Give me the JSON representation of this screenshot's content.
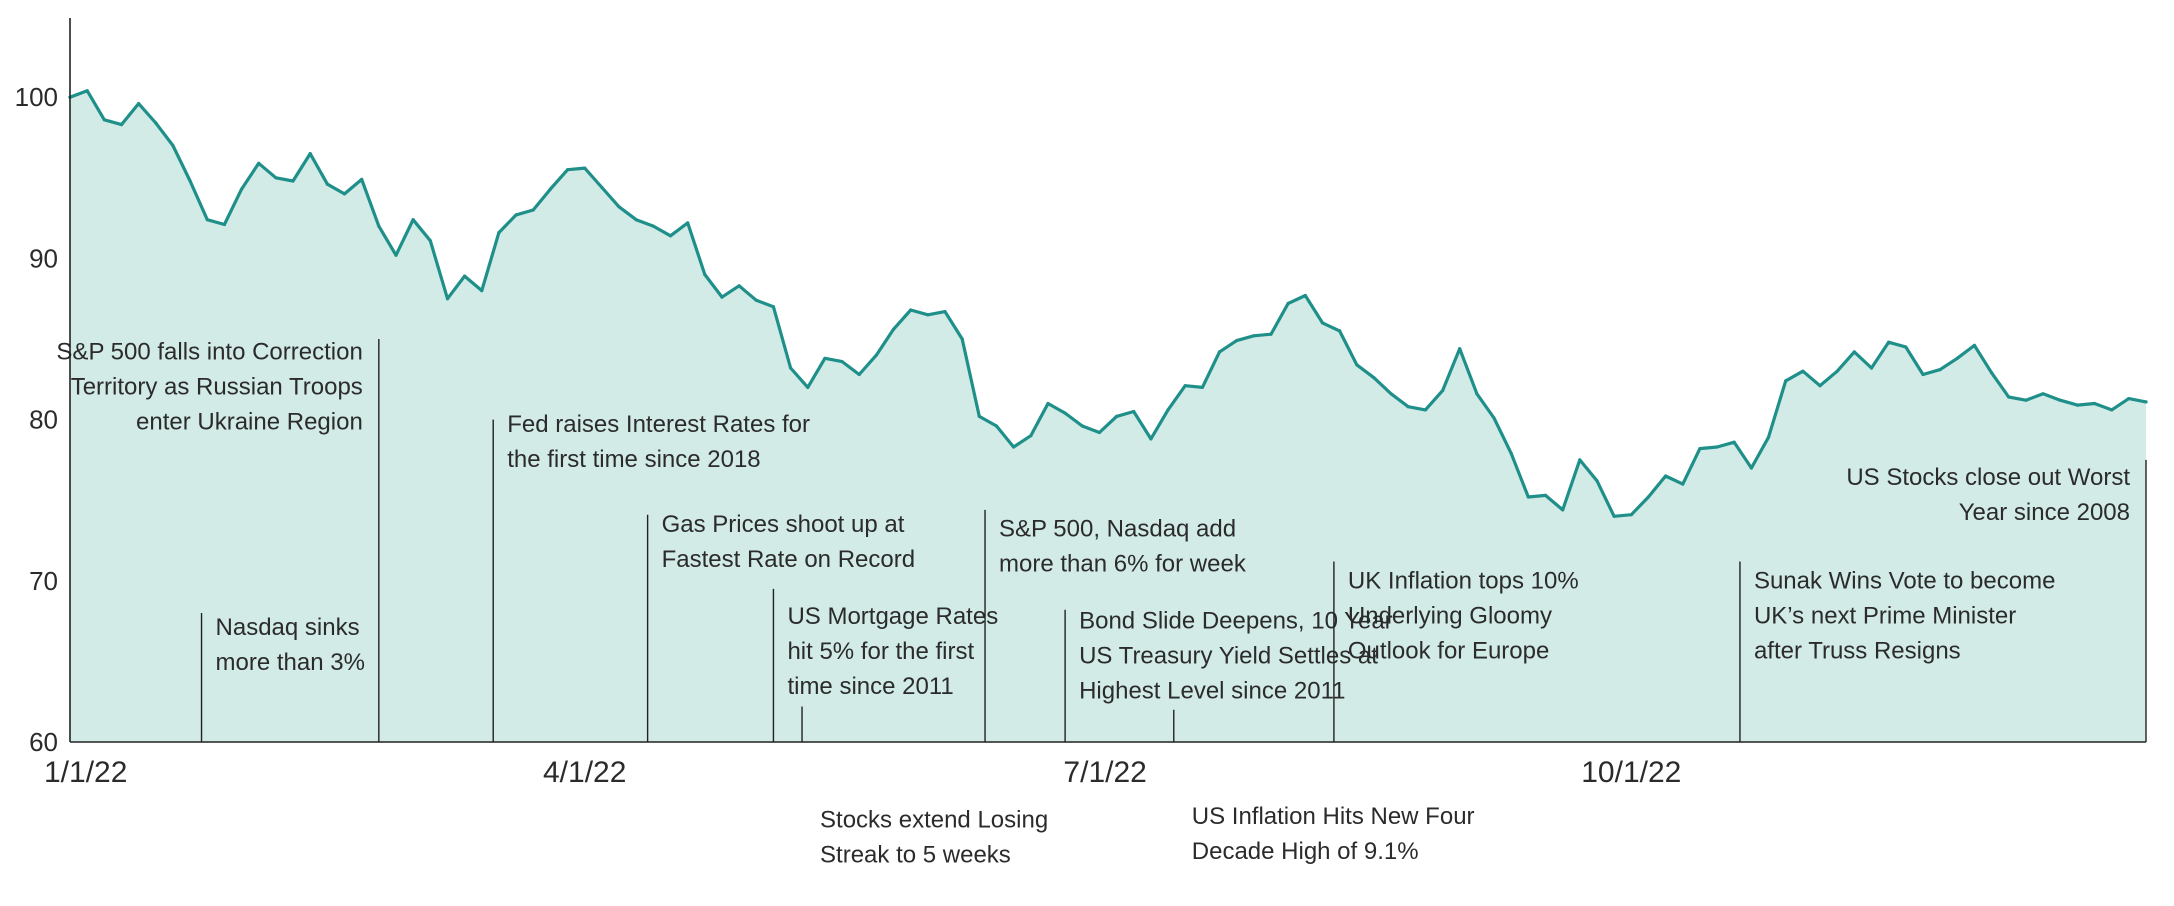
{
  "chart_data": {
    "type": "area",
    "title": "",
    "xlabel": "",
    "ylabel": "",
    "xlim": [
      "2022-01-01",
      "2022-12-30"
    ],
    "ylim": [
      60,
      104
    ],
    "yticks": [
      60,
      70,
      80,
      90,
      100
    ],
    "xticks": [
      "2022-01-01",
      "2022-04-01",
      "2022-07-01",
      "2022-10-01"
    ],
    "xtick_labels": [
      "1/1/22",
      "4/1/22",
      "7/1/22",
      "10/1/22"
    ],
    "grid": false,
    "legend": "none",
    "colors": {
      "line": "#1f8f8a",
      "fill": "#d2ebe7",
      "axis": "#222222",
      "text": "#2b2b2b"
    },
    "series": [
      {
        "x": [
          "2022-01-01",
          "2022-01-04",
          "2022-01-07",
          "2022-01-10",
          "2022-01-13",
          "2022-01-16",
          "2022-01-19",
          "2022-01-22",
          "2022-01-25",
          "2022-01-28",
          "2022-01-31",
          "2022-02-03",
          "2022-02-06",
          "2022-02-09",
          "2022-02-12",
          "2022-02-15",
          "2022-02-18",
          "2022-02-21",
          "2022-02-24",
          "2022-02-27",
          "2022-03-02",
          "2022-03-05",
          "2022-03-08",
          "2022-03-11",
          "2022-03-14",
          "2022-03-17",
          "2022-03-20",
          "2022-03-23",
          "2022-03-26",
          "2022-03-29",
          "2022-04-01",
          "2022-04-04",
          "2022-04-07",
          "2022-04-10",
          "2022-04-13",
          "2022-04-16",
          "2022-04-19",
          "2022-04-22",
          "2022-04-25",
          "2022-04-28",
          "2022-05-01",
          "2022-05-04",
          "2022-05-07",
          "2022-05-10",
          "2022-05-13",
          "2022-05-16",
          "2022-05-19",
          "2022-05-22",
          "2022-05-25",
          "2022-05-28",
          "2022-05-31",
          "2022-06-03",
          "2022-06-06",
          "2022-06-09",
          "2022-06-12",
          "2022-06-15",
          "2022-06-18",
          "2022-06-21",
          "2022-06-24",
          "2022-06-27",
          "2022-06-30",
          "2022-07-03",
          "2022-07-06",
          "2022-07-09",
          "2022-07-12",
          "2022-07-15",
          "2022-07-18",
          "2022-07-21",
          "2022-07-24",
          "2022-07-27",
          "2022-07-30",
          "2022-08-02",
          "2022-08-05",
          "2022-08-08",
          "2022-08-11",
          "2022-08-14",
          "2022-08-17",
          "2022-08-20",
          "2022-08-23",
          "2022-08-26",
          "2022-08-29",
          "2022-09-01",
          "2022-09-04",
          "2022-09-07",
          "2022-09-10",
          "2022-09-13",
          "2022-09-16",
          "2022-09-19",
          "2022-09-22",
          "2022-09-25",
          "2022-09-28",
          "2022-10-01",
          "2022-10-04",
          "2022-10-07",
          "2022-10-10",
          "2022-10-13",
          "2022-10-16",
          "2022-10-19",
          "2022-10-22",
          "2022-10-25",
          "2022-10-28",
          "2022-10-31",
          "2022-11-03",
          "2022-11-06",
          "2022-11-09",
          "2022-11-12",
          "2022-11-15",
          "2022-11-18",
          "2022-11-21",
          "2022-11-24",
          "2022-11-27",
          "2022-11-30",
          "2022-12-03",
          "2022-12-06",
          "2022-12-09",
          "2022-12-12",
          "2022-12-15",
          "2022-12-18",
          "2022-12-21",
          "2022-12-24",
          "2022-12-27",
          "2022-12-30"
        ],
        "y": [
          100.0,
          100.4,
          98.6,
          98.3,
          99.6,
          98.4,
          97.0,
          94.8,
          92.4,
          92.1,
          94.3,
          95.9,
          95.0,
          94.8,
          96.5,
          94.6,
          94.0,
          94.9,
          92.0,
          90.2,
          92.4,
          91.1,
          87.5,
          88.9,
          88.0,
          91.6,
          92.7,
          93.0,
          94.3,
          95.5,
          95.6,
          94.4,
          93.2,
          92.4,
          92.0,
          91.4,
          92.2,
          89.0,
          87.6,
          88.3,
          87.4,
          87.0,
          83.2,
          82.0,
          83.8,
          83.6,
          82.8,
          84.0,
          85.6,
          86.8,
          86.5,
          86.7,
          85.0,
          80.2,
          79.6,
          78.3,
          79.0,
          81.0,
          80.4,
          79.6,
          79.2,
          80.2,
          80.5,
          78.8,
          80.6,
          82.1,
          82.0,
          84.2,
          84.9,
          85.2,
          85.3,
          87.2,
          87.7,
          86.0,
          85.5,
          83.4,
          82.6,
          81.6,
          80.8,
          80.6,
          81.8,
          84.4,
          81.6,
          80.1,
          77.9,
          75.2,
          75.3,
          74.4,
          77.5,
          76.2,
          74.0,
          74.1,
          75.2,
          76.5,
          76.0,
          78.2,
          78.3,
          78.6,
          77.0,
          78.9,
          82.4,
          83.0,
          82.1,
          83.0,
          84.2,
          83.2,
          84.8,
          84.5,
          82.8,
          83.1,
          83.8,
          84.6,
          82.9,
          81.4,
          81.2,
          81.6,
          81.2,
          80.9,
          81.0,
          80.6,
          81.3,
          81.1
        ]
      }
    ],
    "annotations": [
      {
        "x": "2022-01-24",
        "lines": [
          "Nasdaq sinks",
          "more than 3%"
        ],
        "value_top": 68,
        "text_top": 68,
        "align": "left"
      },
      {
        "x": "2022-02-24",
        "lines": [
          "S&P 500 falls into Correction",
          "Territory as Russian Troops",
          "enter Ukraine Region"
        ],
        "value_top": 85,
        "text_top": 85.1,
        "align": "right"
      },
      {
        "x": "2022-03-16",
        "lines": [
          "Fed raises Interest Rates for",
          "the first time since 2018"
        ],
        "value_top": 80,
        "text_top": 80.6,
        "align": "left"
      },
      {
        "x": "2022-04-12",
        "lines": [
          "Gas Prices shoot up at",
          "Fastest Rate on Record"
        ],
        "value_top": 74.1,
        "text_top": 74.4,
        "align": "left"
      },
      {
        "x": "2022-05-04",
        "lines": [
          "US Mortgage Rates",
          "hit 5% for the first",
          "time since 2011"
        ],
        "value_top": 69.5,
        "text_top": 68.7,
        "align": "left"
      },
      {
        "x": "2022-05-09",
        "lines": [
          "Stocks extend Losing",
          "Streak to 5 weeks"
        ],
        "value_top": 60,
        "text_top": 54.7,
        "align": "left",
        "below": true
      },
      {
        "x": "2022-06-10",
        "lines": [
          "S&P 500, Nasdaq add",
          "more than 6% for week"
        ],
        "value_top": 74.4,
        "text_top": 74.1,
        "align": "left"
      },
      {
        "x": "2022-06-24",
        "lines": [
          "Bond Slide Deepens, 10 Year",
          "US Treasury Yield Settles at",
          "Highest Level since 2011"
        ],
        "value_top": 68.2,
        "text_top": 68.4,
        "align": "left"
      },
      {
        "x": "2022-07-13",
        "lines": [
          "US Inflation Hits New Four",
          "Decade High of 9.1%"
        ],
        "value_top": 60,
        "text_top": 54.9,
        "align": "left",
        "below": true
      },
      {
        "x": "2022-08-10",
        "lines": [
          "UK Inflation tops 10%",
          "Underlying Gloomy",
          "Outlook for Europe"
        ],
        "value_top": 71.2,
        "text_top": 70.9,
        "align": "left"
      },
      {
        "x": "2022-10-20",
        "lines": [
          "Sunak Wins Vote to become",
          "UK’s next Prime Minister",
          "after Truss Resigns"
        ],
        "value_top": 71.2,
        "text_top": 70.9,
        "align": "left"
      },
      {
        "x": "2022-12-30",
        "lines": [
          "US Stocks close out Worst",
          "Year since 2008"
        ],
        "value_top": 77.5,
        "text_top": 77.3,
        "align": "right"
      }
    ]
  }
}
